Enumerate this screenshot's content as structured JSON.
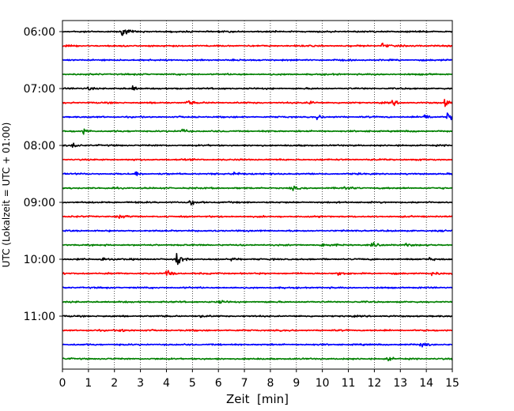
{
  "chart_data": {
    "type": "line",
    "subtype": "helicorder-seismogram",
    "xlabel": "Zeit  [min]",
    "ylabel": "UTC (Lokalzeit = UTC + 01:00)",
    "xlim": [
      0,
      15
    ],
    "xticks": [
      "0",
      "1",
      "2",
      "3",
      "4",
      "5",
      "6",
      "7",
      "8",
      "9",
      "10",
      "11",
      "12",
      "13",
      "14",
      "15"
    ],
    "yticks": [
      "06:00",
      "07:00",
      "08:00",
      "09:00",
      "10:00",
      "11:00"
    ],
    "grid": "vertical dotted at each minute",
    "line_minutes": 15,
    "series_colors": [
      "#000000",
      "#ff0000",
      "#0000ff",
      "#008000"
    ],
    "traces": [
      {
        "start": "06:00",
        "color": "#000000",
        "events": [
          [
            2.3,
            1.0
          ]
        ]
      },
      {
        "start": "06:15",
        "color": "#ff0000",
        "events": [
          [
            12.3,
            0.6
          ]
        ]
      },
      {
        "start": "06:30",
        "color": "#0000ff",
        "events": []
      },
      {
        "start": "06:45",
        "color": "#008000",
        "events": []
      },
      {
        "start": "07:00",
        "color": "#000000",
        "events": [
          [
            1.0,
            0.4
          ],
          [
            2.7,
            0.4
          ]
        ]
      },
      {
        "start": "07:15",
        "color": "#ff0000",
        "events": [
          [
            4.8,
            0.6
          ],
          [
            9.5,
            0.5
          ],
          [
            12.7,
            0.5
          ],
          [
            14.7,
            0.7
          ]
        ]
      },
      {
        "start": "07:30",
        "color": "#0000ff",
        "events": [
          [
            9.8,
            0.5
          ],
          [
            13.9,
            0.9
          ],
          [
            14.8,
            1.3
          ]
        ]
      },
      {
        "start": "07:45",
        "color": "#008000",
        "events": [
          [
            0.8,
            0.6
          ],
          [
            4.6,
            0.5
          ]
        ]
      },
      {
        "start": "08:00",
        "color": "#000000",
        "events": [
          [
            0.4,
            0.6
          ]
        ]
      },
      {
        "start": "08:15",
        "color": "#ff0000",
        "events": []
      },
      {
        "start": "08:30",
        "color": "#0000ff",
        "events": [
          [
            2.8,
            0.5
          ],
          [
            6.6,
            0.6
          ]
        ]
      },
      {
        "start": "08:45",
        "color": "#008000",
        "events": [
          [
            8.8,
            0.5
          ],
          [
            10.8,
            0.7
          ]
        ]
      },
      {
        "start": "09:00",
        "color": "#000000",
        "events": [
          [
            4.9,
            0.7
          ]
        ]
      },
      {
        "start": "09:15",
        "color": "#ff0000",
        "events": [
          [
            2.2,
            0.4
          ]
        ]
      },
      {
        "start": "09:30",
        "color": "#0000ff",
        "events": []
      },
      {
        "start": "09:45",
        "color": "#008000",
        "events": [
          [
            10.0,
            0.8
          ],
          [
            11.9,
            0.6
          ],
          [
            13.2,
            0.4
          ]
        ]
      },
      {
        "start": "10:00",
        "color": "#000000",
        "events": [
          [
            1.5,
            0.5
          ],
          [
            4.4,
            1.5
          ],
          [
            6.5,
            0.4
          ],
          [
            14.1,
            0.4
          ]
        ]
      },
      {
        "start": "10:15",
        "color": "#ff0000",
        "events": [
          [
            4.0,
            0.8
          ],
          [
            10.6,
            0.6
          ],
          [
            14.2,
            0.5
          ]
        ]
      },
      {
        "start": "10:30",
        "color": "#0000ff",
        "events": []
      },
      {
        "start": "10:45",
        "color": "#008000",
        "events": [
          [
            6.0,
            0.4
          ]
        ]
      },
      {
        "start": "11:00",
        "color": "#000000",
        "events": [
          [
            5.3,
            0.3
          ]
        ]
      },
      {
        "start": "11:15",
        "color": "#ff0000",
        "events": [
          [
            2.2,
            0.6
          ]
        ]
      },
      {
        "start": "11:30",
        "color": "#0000ff",
        "events": [
          [
            13.8,
            0.8
          ]
        ]
      },
      {
        "start": "11:45",
        "color": "#008000",
        "events": [
          [
            12.5,
            0.4
          ]
        ]
      }
    ]
  }
}
